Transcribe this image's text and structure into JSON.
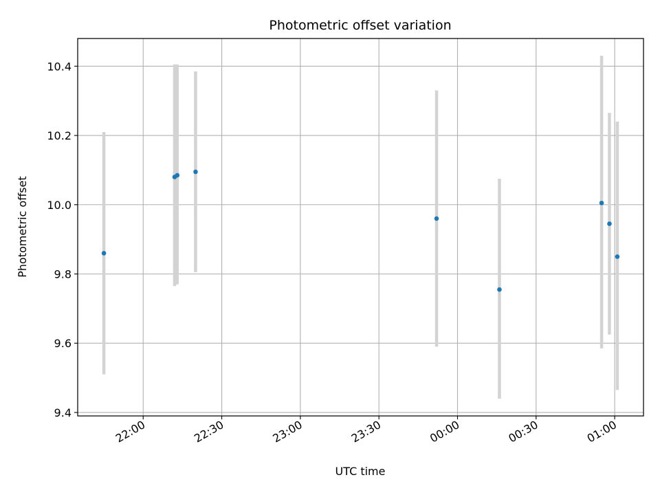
{
  "chart_data": {
    "type": "scatter",
    "title": "Photometric offset variation",
    "xlabel": "UTC time",
    "ylabel": "Photometric offset",
    "x_axis": {
      "type": "time",
      "ticks": [
        "22:00",
        "22:30",
        "23:00",
        "23:30",
        "00:00",
        "00:30",
        "01:00"
      ],
      "range": [
        "21:35",
        "01:11"
      ]
    },
    "ylim": [
      9.39,
      10.48
    ],
    "y_ticks": [
      "9.4",
      "9.6",
      "9.8",
      "10.0",
      "10.2",
      "10.4"
    ],
    "grid": true,
    "point_color": "#1f77b4",
    "errorbar_color": "#d3d3d3",
    "points": [
      {
        "time": "21:45",
        "value": 9.86,
        "low": 9.51,
        "high": 10.21
      },
      {
        "time": "22:12",
        "value": 10.08,
        "low": 9.765,
        "high": 10.405
      },
      {
        "time": "22:13",
        "value": 10.085,
        "low": 9.77,
        "high": 10.405
      },
      {
        "time": "22:20",
        "value": 10.095,
        "low": 9.805,
        "high": 10.385
      },
      {
        "time": "23:52",
        "value": 9.96,
        "low": 9.59,
        "high": 10.33
      },
      {
        "time": "00:16",
        "value": 9.755,
        "low": 9.44,
        "high": 10.075
      },
      {
        "time": "00:55",
        "value": 10.005,
        "low": 9.585,
        "high": 10.43
      },
      {
        "time": "00:58",
        "value": 9.945,
        "low": 9.625,
        "high": 10.265
      },
      {
        "time": "01:01",
        "value": 9.85,
        "low": 9.465,
        "high": 10.24
      }
    ]
  }
}
